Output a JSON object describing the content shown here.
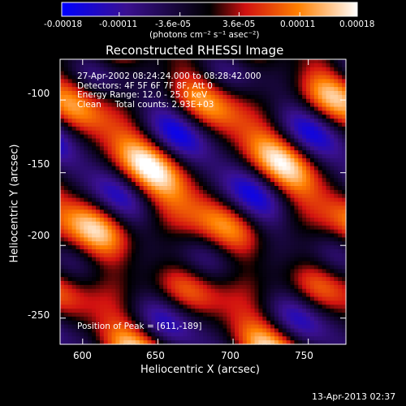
{
  "chart_data": {
    "type": "heatmap",
    "title": "Reconstructed RHESSI Image",
    "xlabel": "Heliocentric X (arcsec)",
    "ylabel": "Heliocentric Y (arcsec)",
    "xlim": [
      585,
      775
    ],
    "ylim": [
      -268,
      -72
    ],
    "x_ticks": [
      "600",
      "650",
      "700",
      "750"
    ],
    "x_tick_values": [
      600,
      650,
      700,
      750
    ],
    "y_ticks": [
      "-100",
      "-150",
      "-200",
      "-250"
    ],
    "y_tick_values": [
      -100,
      -150,
      -200,
      -250
    ],
    "colorbar": {
      "range": [
        -0.00018,
        0.00018
      ],
      "tick_labels": [
        "-0.00018",
        "-0.00011",
        "-3.6e-05",
        "3.6e-05",
        "0.00011",
        "0.00018"
      ],
      "tick_values": [
        -0.00018,
        -0.00011,
        -3.6e-05,
        3.6e-05,
        0.00011,
        0.00018
      ],
      "units_label": "(photons cm⁻² s⁻¹ asec⁻²)",
      "colormap": [
        "#0000ff",
        "#3a1090",
        "#000000",
        "#d01010",
        "#ff8000",
        "#ffffff"
      ]
    },
    "annotations": [
      "27-Apr-2002 08:24:24.000 to 08:28:42.000",
      "Detectors: 4F 5F 6F 7F 8F, Att 0",
      "Energy Range: 12.0 - 25.0 keV",
      "Clean     Total counts: 2.93E+03"
    ],
    "peak_label": "Position of Peak = [611,-189]",
    "peak": [
      611,
      -189
    ]
  },
  "footer": {
    "timestamp": "13-Apr-2013 02:37"
  }
}
